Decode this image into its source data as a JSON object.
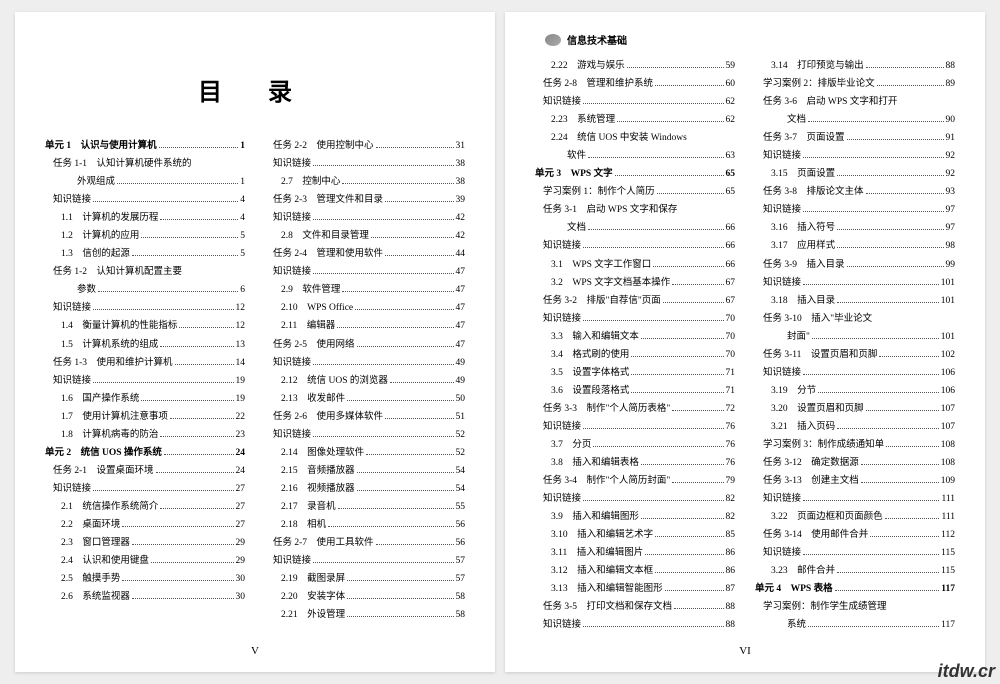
{
  "title": "目 录",
  "header": "信息技术基础",
  "footer_left": "V",
  "footer_right": "VI",
  "watermark": "itdw.cr",
  "left_col1": [
    {
      "cls": "unit",
      "label": "单元 1　认识与使用计算机",
      "page": "1"
    },
    {
      "cls": "task",
      "label": "任务 1-1　认知计算机硬件系统的",
      "page": ""
    },
    {
      "cls": "sub2",
      "label": "外观组成",
      "page": "1"
    },
    {
      "cls": "link",
      "label": "知识链接",
      "page": "4"
    },
    {
      "cls": "sub",
      "label": "1.1　计算机的发展历程",
      "page": "4"
    },
    {
      "cls": "sub",
      "label": "1.2　计算机的应用",
      "page": "5"
    },
    {
      "cls": "sub",
      "label": "1.3　信创的起源",
      "page": "5"
    },
    {
      "cls": "task",
      "label": "任务 1-2　认知计算机配置主要",
      "page": ""
    },
    {
      "cls": "sub2",
      "label": "参数",
      "page": "6"
    },
    {
      "cls": "link",
      "label": "知识链接",
      "page": "12"
    },
    {
      "cls": "sub",
      "label": "1.4　衡量计算机的性能指标",
      "page": "12"
    },
    {
      "cls": "sub",
      "label": "1.5　计算机系统的组成",
      "page": "13"
    },
    {
      "cls": "task",
      "label": "任务 1-3　使用和维护计算机",
      "page": "14"
    },
    {
      "cls": "link",
      "label": "知识链接",
      "page": "19"
    },
    {
      "cls": "sub",
      "label": "1.6　国产操作系统",
      "page": "19"
    },
    {
      "cls": "sub",
      "label": "1.7　使用计算机注意事项",
      "page": "22"
    },
    {
      "cls": "sub",
      "label": "1.8　计算机病毒的防治",
      "page": "23"
    },
    {
      "cls": "unit",
      "label": "单元 2　统信 UOS 操作系统",
      "page": "24"
    },
    {
      "cls": "task",
      "label": "任务 2-1　设置桌面环境",
      "page": "24"
    },
    {
      "cls": "link",
      "label": "知识链接",
      "page": "27"
    },
    {
      "cls": "sub",
      "label": "2.1　统信操作系统简介",
      "page": "27"
    },
    {
      "cls": "sub",
      "label": "2.2　桌面环境",
      "page": "27"
    },
    {
      "cls": "sub",
      "label": "2.3　窗口管理器",
      "page": "29"
    },
    {
      "cls": "sub",
      "label": "2.4　认识和使用键盘",
      "page": "29"
    },
    {
      "cls": "sub",
      "label": "2.5　触摸手势",
      "page": "30"
    },
    {
      "cls": "sub",
      "label": "2.6　系统监视器",
      "page": "30"
    }
  ],
  "left_col2": [
    {
      "cls": "task",
      "label": "任务 2-2　使用控制中心",
      "page": "31"
    },
    {
      "cls": "link",
      "label": "知识链接",
      "page": "38"
    },
    {
      "cls": "sub",
      "label": "2.7　控制中心",
      "page": "38"
    },
    {
      "cls": "task",
      "label": "任务 2-3　管理文件和目录",
      "page": "39"
    },
    {
      "cls": "link",
      "label": "知识链接",
      "page": "42"
    },
    {
      "cls": "sub",
      "label": "2.8　文件和目录管理",
      "page": "42"
    },
    {
      "cls": "task",
      "label": "任务 2-4　管理和使用软件",
      "page": "44"
    },
    {
      "cls": "link",
      "label": "知识链接",
      "page": "47"
    },
    {
      "cls": "sub",
      "label": "2.9　软件管理",
      "page": "47"
    },
    {
      "cls": "sub",
      "label": "2.10　WPS Office",
      "page": "47"
    },
    {
      "cls": "sub",
      "label": "2.11　编辑器",
      "page": "47"
    },
    {
      "cls": "task",
      "label": "任务 2-5　使用网络",
      "page": "47"
    },
    {
      "cls": "link",
      "label": "知识链接",
      "page": "49"
    },
    {
      "cls": "sub",
      "label": "2.12　统信 UOS 的浏览器",
      "page": "49"
    },
    {
      "cls": "sub",
      "label": "2.13　收发邮件",
      "page": "50"
    },
    {
      "cls": "task",
      "label": "任务 2-6　使用多媒体软件",
      "page": "51"
    },
    {
      "cls": "link",
      "label": "知识链接",
      "page": "52"
    },
    {
      "cls": "sub",
      "label": "2.14　图像处理软件",
      "page": "52"
    },
    {
      "cls": "sub",
      "label": "2.15　音频播放器",
      "page": "54"
    },
    {
      "cls": "sub",
      "label": "2.16　视频播放器",
      "page": "54"
    },
    {
      "cls": "sub",
      "label": "2.17　录音机",
      "page": "55"
    },
    {
      "cls": "sub",
      "label": "2.18　相机",
      "page": "56"
    },
    {
      "cls": "task",
      "label": "任务 2-7　使用工具软件",
      "page": "56"
    },
    {
      "cls": "link",
      "label": "知识链接",
      "page": "57"
    },
    {
      "cls": "sub",
      "label": "2.19　截图录屏",
      "page": "57"
    },
    {
      "cls": "sub",
      "label": "2.20　安装字体",
      "page": "58"
    },
    {
      "cls": "sub",
      "label": "2.21　外设管理",
      "page": "58"
    }
  ],
  "right_col1": [
    {
      "cls": "sub",
      "label": "2.22　游戏与娱乐",
      "page": "59"
    },
    {
      "cls": "task",
      "label": "任务 2-8　管理和维护系统",
      "page": "60"
    },
    {
      "cls": "link",
      "label": "知识链接",
      "page": "62"
    },
    {
      "cls": "sub",
      "label": "2.23　系统管理",
      "page": "62"
    },
    {
      "cls": "sub",
      "label": "2.24　统信 UOS 中安装 Windows",
      "page": ""
    },
    {
      "cls": "sub2",
      "label": "软件",
      "page": "63"
    },
    {
      "cls": "unit",
      "label": "单元 3　WPS 文字",
      "page": "65"
    },
    {
      "cls": "task",
      "label": "学习案例 1：制作个人简历",
      "page": "65"
    },
    {
      "cls": "task",
      "label": "任务 3-1　启动 WPS 文字和保存",
      "page": ""
    },
    {
      "cls": "sub2",
      "label": "文档",
      "page": "66"
    },
    {
      "cls": "link",
      "label": "知识链接",
      "page": "66"
    },
    {
      "cls": "sub",
      "label": "3.1　WPS 文字工作窗口",
      "page": "66"
    },
    {
      "cls": "sub",
      "label": "3.2　WPS 文字文档基本操作",
      "page": "67"
    },
    {
      "cls": "task",
      "label": "任务 3-2　排版\"自荐信\"页面",
      "page": "67"
    },
    {
      "cls": "link",
      "label": "知识链接",
      "page": "70"
    },
    {
      "cls": "sub",
      "label": "3.3　输入和编辑文本",
      "page": "70"
    },
    {
      "cls": "sub",
      "label": "3.4　格式刷的使用",
      "page": "70"
    },
    {
      "cls": "sub",
      "label": "3.5　设置字体格式",
      "page": "71"
    },
    {
      "cls": "sub",
      "label": "3.6　设置段落格式",
      "page": "71"
    },
    {
      "cls": "task",
      "label": "任务 3-3　制作\"个人简历表格\"",
      "page": "72"
    },
    {
      "cls": "link",
      "label": "知识链接",
      "page": "76"
    },
    {
      "cls": "sub",
      "label": "3.7　分页",
      "page": "76"
    },
    {
      "cls": "sub",
      "label": "3.8　插入和编辑表格",
      "page": "76"
    },
    {
      "cls": "task",
      "label": "任务 3-4　制作\"个人简历封面\"",
      "page": "79"
    },
    {
      "cls": "link",
      "label": "知识链接",
      "page": "82"
    },
    {
      "cls": "sub",
      "label": "3.9　插入和编辑图形",
      "page": "82"
    },
    {
      "cls": "sub",
      "label": "3.10　插入和编辑艺术字",
      "page": "85"
    },
    {
      "cls": "sub",
      "label": "3.11　插入和编辑图片",
      "page": "86"
    },
    {
      "cls": "sub",
      "label": "3.12　插入和编辑文本框",
      "page": "86"
    },
    {
      "cls": "sub",
      "label": "3.13　插入和编辑智能图形",
      "page": "87"
    },
    {
      "cls": "task",
      "label": "任务 3-5　打印文档和保存文档",
      "page": "88"
    },
    {
      "cls": "link",
      "label": "知识链接",
      "page": "88"
    }
  ],
  "right_col2": [
    {
      "cls": "sub",
      "label": "3.14　打印预览与输出",
      "page": "88"
    },
    {
      "cls": "task",
      "label": "学习案例 2：排版毕业论文",
      "page": "89"
    },
    {
      "cls": "task",
      "label": "任务 3-6　启动 WPS 文字和打开",
      "page": ""
    },
    {
      "cls": "sub2",
      "label": "文档",
      "page": "90"
    },
    {
      "cls": "task",
      "label": "任务 3-7　页面设置",
      "page": "91"
    },
    {
      "cls": "link",
      "label": "知识链接",
      "page": "92"
    },
    {
      "cls": "sub",
      "label": "3.15　页面设置",
      "page": "92"
    },
    {
      "cls": "task",
      "label": "任务 3-8　排版论文主体",
      "page": "93"
    },
    {
      "cls": "link",
      "label": "知识链接",
      "page": "97"
    },
    {
      "cls": "sub",
      "label": "3.16　插入符号",
      "page": "97"
    },
    {
      "cls": "sub",
      "label": "3.17　应用样式",
      "page": "98"
    },
    {
      "cls": "task",
      "label": "任务 3-9　插入目录",
      "page": "99"
    },
    {
      "cls": "link",
      "label": "知识链接",
      "page": "101"
    },
    {
      "cls": "sub",
      "label": "3.18　插入目录",
      "page": "101"
    },
    {
      "cls": "task",
      "label": "任务 3-10　插入\"毕业论文",
      "page": ""
    },
    {
      "cls": "sub2",
      "label": "封面\"",
      "page": "101"
    },
    {
      "cls": "task",
      "label": "任务 3-11　设置页眉和页脚",
      "page": "102"
    },
    {
      "cls": "link",
      "label": "知识链接",
      "page": "106"
    },
    {
      "cls": "sub",
      "label": "3.19　分节",
      "page": "106"
    },
    {
      "cls": "sub",
      "label": "3.20　设置页眉和页脚",
      "page": "107"
    },
    {
      "cls": "sub",
      "label": "3.21　插入页码",
      "page": "107"
    },
    {
      "cls": "task",
      "label": "学习案例 3：制作成绩通知单",
      "page": "108"
    },
    {
      "cls": "task",
      "label": "任务 3-12　确定数据源",
      "page": "108"
    },
    {
      "cls": "task",
      "label": "任务 3-13　创建主文档",
      "page": "109"
    },
    {
      "cls": "link",
      "label": "知识链接",
      "page": "111"
    },
    {
      "cls": "sub",
      "label": "3.22　页面边框和页面颜色",
      "page": "111"
    },
    {
      "cls": "task",
      "label": "任务 3-14　使用邮件合并",
      "page": "112"
    },
    {
      "cls": "link",
      "label": "知识链接",
      "page": "115"
    },
    {
      "cls": "sub",
      "label": "3.23　邮件合并",
      "page": "115"
    },
    {
      "cls": "unit",
      "label": "单元 4　WPS 表格",
      "page": "117"
    },
    {
      "cls": "task",
      "label": "学习案例：制作学生成绩管理",
      "page": ""
    },
    {
      "cls": "sub2",
      "label": "系统",
      "page": "117"
    }
  ]
}
